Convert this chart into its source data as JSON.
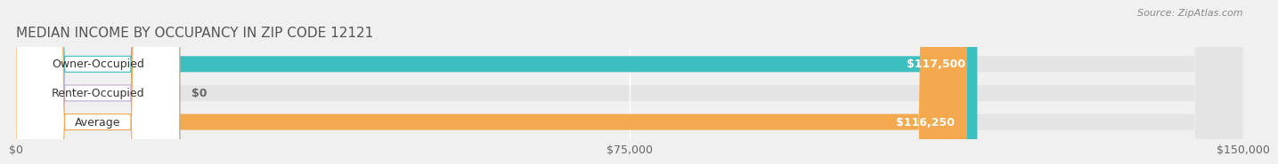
{
  "title": "MEDIAN INCOME BY OCCUPANCY IN ZIP CODE 12121",
  "source": "Source: ZipAtlas.com",
  "categories": [
    "Owner-Occupied",
    "Renter-Occupied",
    "Average"
  ],
  "values": [
    117500,
    0,
    116250
  ],
  "colors": [
    "#3dbfbf",
    "#c4a8d4",
    "#f5a94e"
  ],
  "bar_labels": [
    "$117,500",
    "$0",
    "$116,250"
  ],
  "xlim": [
    0,
    150000
  ],
  "xticks": [
    0,
    75000,
    150000
  ],
  "xtick_labels": [
    "$0",
    "$75,000",
    "$150,000"
  ],
  "background_color": "#f0f0f0",
  "bar_bg_color": "#e4e4e4",
  "title_fontsize": 11,
  "label_fontsize": 9,
  "tick_fontsize": 9,
  "source_fontsize": 8
}
